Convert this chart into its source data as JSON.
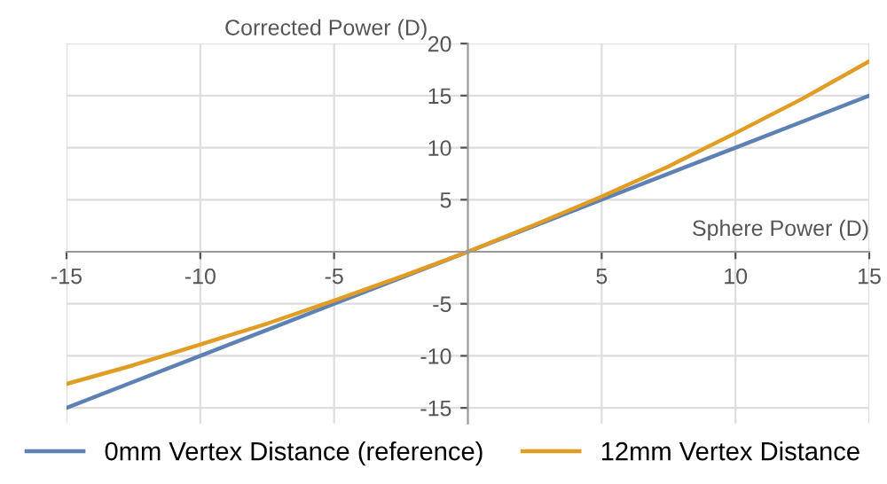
{
  "chart_data": {
    "type": "line",
    "xlabel": "Sphere Power (D)",
    "ylabel": "Corrected Power (D)",
    "x": [
      -15,
      -12.5,
      -10,
      -7.5,
      -5,
      -2.5,
      0,
      2.5,
      5,
      7.5,
      10,
      12.5,
      15
    ],
    "series": [
      {
        "name": "0mm Vertex Distance (reference)",
        "color": "#5e81b5",
        "values": [
          -15,
          -12.5,
          -10,
          -7.5,
          -5,
          -2.5,
          0,
          2.5,
          5,
          7.5,
          10,
          12.5,
          15
        ]
      },
      {
        "name": "12mm Vertex Distance",
        "color": "#e19c24",
        "values": [
          -12.7,
          -10.9,
          -8.9,
          -6.9,
          -4.7,
          -2.4,
          0,
          2.6,
          5.3,
          8.2,
          11.4,
          14.7,
          18.3
        ]
      }
    ],
    "xlim": [
      -15,
      15
    ],
    "ylim": [
      -16.5,
      20
    ],
    "xticks": [
      -15,
      -10,
      -5,
      5,
      10,
      15
    ],
    "yticks": [
      -15,
      -10,
      -5,
      5,
      10,
      15,
      20
    ],
    "grid": true,
    "legend": "bottom",
    "marker": "none",
    "line_style": "solid"
  }
}
